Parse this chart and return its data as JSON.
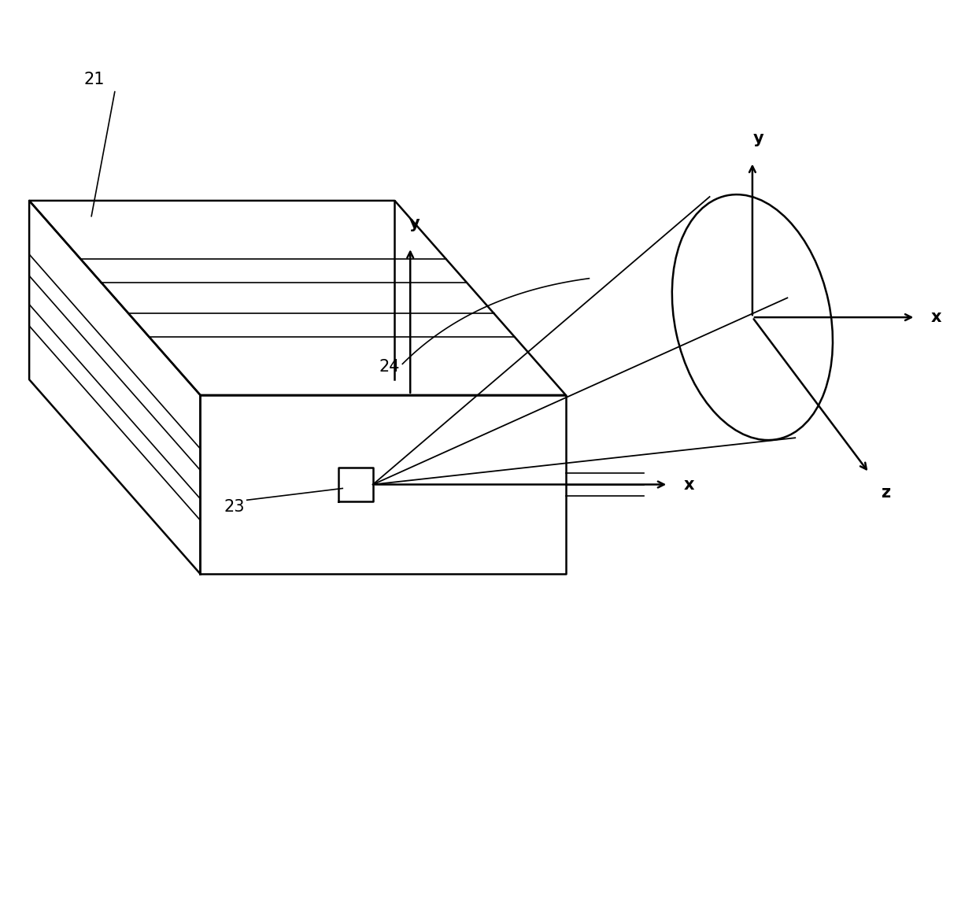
{
  "bg_color": "#ffffff",
  "line_color": "#000000",
  "figsize": [
    12.4,
    11.51
  ],
  "dpi": 100,
  "label_21": "21",
  "label_23": "23",
  "label_24": "24",
  "label_x1": "x",
  "label_y1": "y",
  "label_x2": "x",
  "label_y2": "y",
  "label_z": "z",
  "fontsize_label": 15,
  "lw_main": 1.8,
  "lw_thin": 1.2,
  "arrow_mutation": 14
}
